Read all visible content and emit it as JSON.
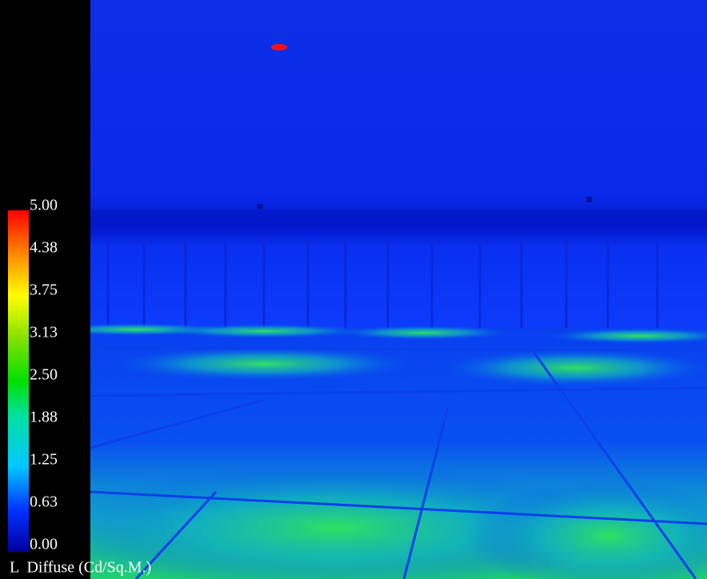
{
  "legend": {
    "ticks": [
      "5.00",
      "4.38",
      "3.75",
      "3.13",
      "2.50",
      "1.88",
      "1.25",
      "0.63",
      "0.00"
    ],
    "caption": "L  Diffuse (Cd/Sq.M.)"
  }
}
